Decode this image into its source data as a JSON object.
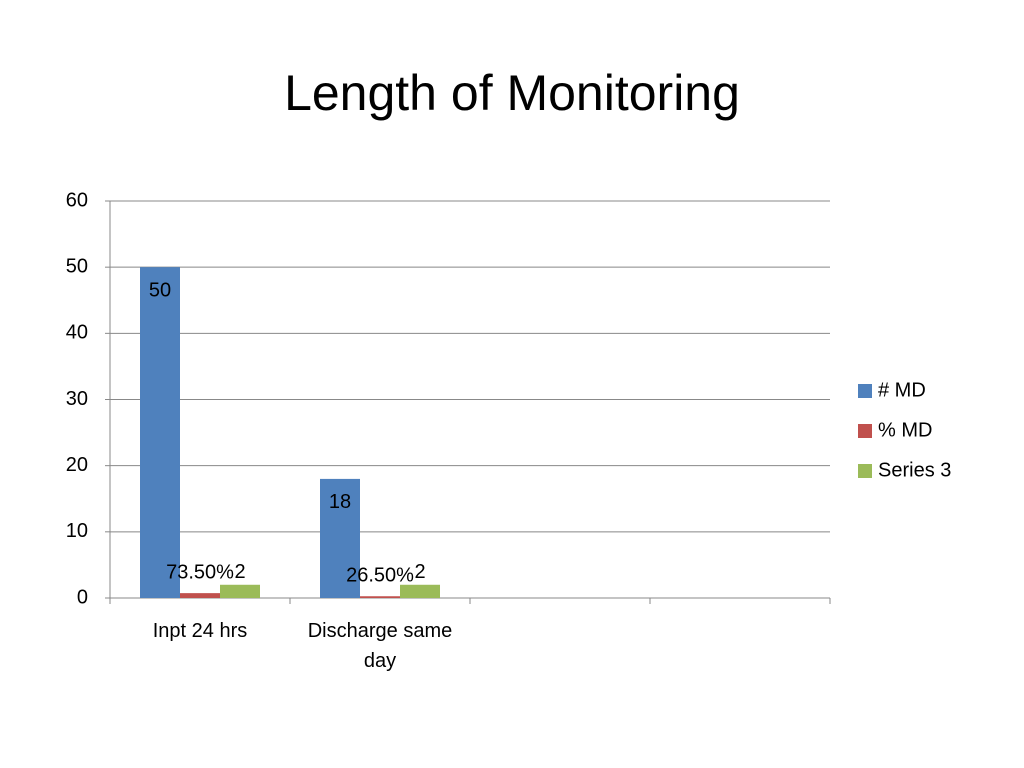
{
  "chart_data": {
    "type": "bar",
    "title": "Length of Monitoring",
    "categories": [
      "Inpt 24 hrs",
      "Discharge same day",
      null,
      null
    ],
    "series": [
      {
        "name": "# MD",
        "color": "#4f81bd",
        "values": [
          50,
          18,
          null,
          null
        ]
      },
      {
        "name": "% MD",
        "color": "#c0504d",
        "values": [
          0.735,
          0.265,
          null,
          null
        ],
        "value_labels": [
          "73.50%",
          "26.50%",
          null,
          null
        ]
      },
      {
        "name": "Series 3",
        "color": "#9bbb59",
        "values": [
          2,
          2,
          null,
          null
        ]
      }
    ],
    "ylim": [
      0,
      60
    ],
    "yticks": [
      0,
      10,
      20,
      30,
      40,
      50,
      60
    ],
    "grid": true,
    "legend": "right"
  }
}
